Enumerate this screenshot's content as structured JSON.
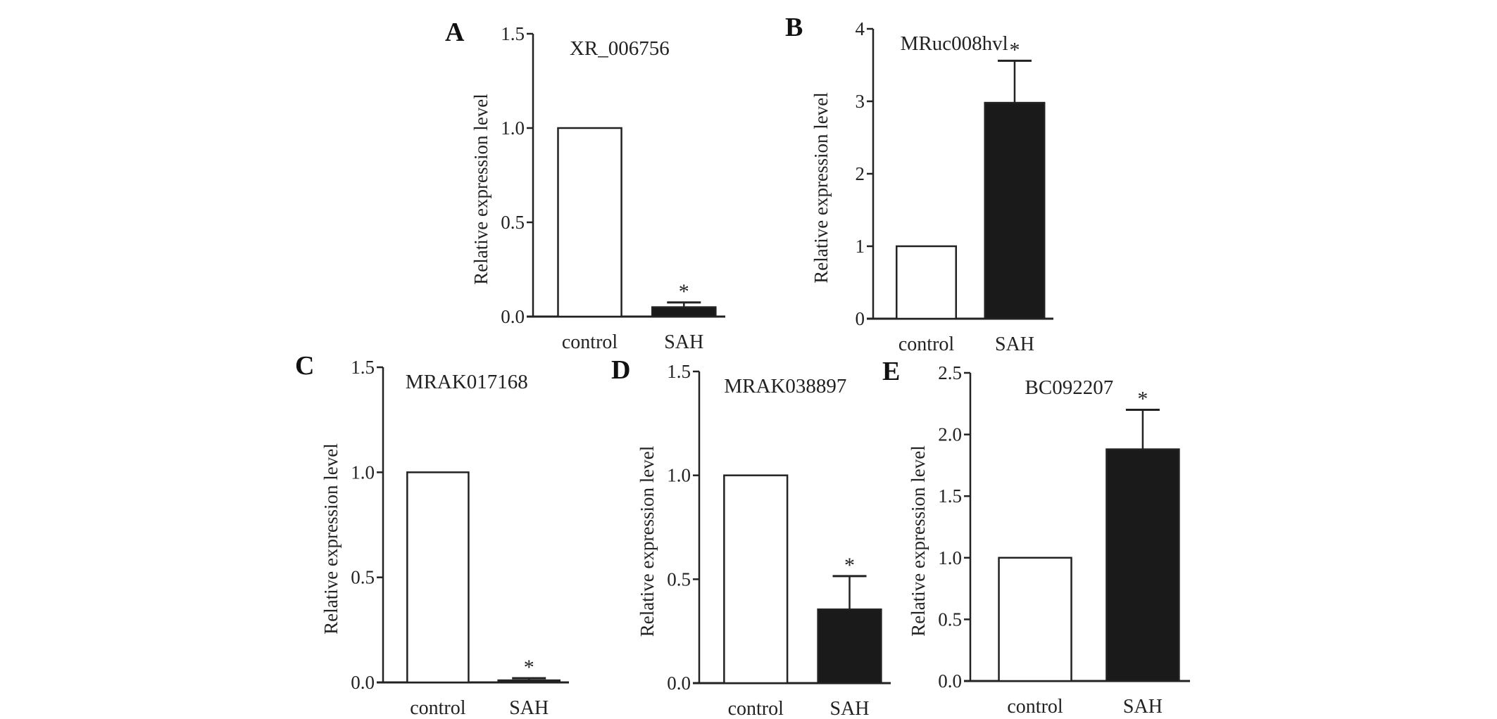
{
  "chart_data": [
    {
      "type": "bar",
      "panel": "A",
      "title": "XR_006756",
      "ylabel": "Relative expression level",
      "categories": [
        "control",
        "SAH"
      ],
      "values": [
        1.0,
        0.05
      ],
      "error_upper": [
        null,
        0.075
      ],
      "significance": [
        "",
        "*"
      ],
      "ylim": [
        0,
        1.5
      ],
      "yticks": [
        "0.0",
        "0.5",
        "1.0",
        "1.5"
      ],
      "colors": [
        "#ffffff",
        "#1a1a1a"
      ]
    },
    {
      "type": "bar",
      "panel": "B",
      "title": "MRuc008hvl",
      "ylabel": "Relative expression level",
      "categories": [
        "control",
        "SAH"
      ],
      "values": [
        1.0,
        2.98
      ],
      "error_upper": [
        null,
        3.56
      ],
      "significance": [
        "",
        "*"
      ],
      "ylim": [
        0,
        4
      ],
      "yticks": [
        "0",
        "1",
        "2",
        "3",
        "4"
      ],
      "colors": [
        "#ffffff",
        "#1a1a1a"
      ]
    },
    {
      "type": "bar",
      "panel": "C",
      "title": "MRAK017168",
      "ylabel": "Relative expression level",
      "categories": [
        "control",
        "SAH"
      ],
      "values": [
        1.0,
        0.01
      ],
      "error_upper": [
        null,
        0.02
      ],
      "significance": [
        "",
        "*"
      ],
      "ylim": [
        0,
        1.5
      ],
      "yticks": [
        "0.0",
        "0.5",
        "1.0",
        "1.5"
      ],
      "colors": [
        "#ffffff",
        "#1a1a1a"
      ]
    },
    {
      "type": "bar",
      "panel": "D",
      "title": "MRAK038897",
      "ylabel": "Relative expression level",
      "categories": [
        "control",
        "SAH"
      ],
      "values": [
        1.0,
        0.355
      ],
      "error_upper": [
        null,
        0.515
      ],
      "significance": [
        "",
        "*"
      ],
      "ylim": [
        0,
        1.5
      ],
      "yticks": [
        "0.0",
        "0.5",
        "1.0",
        "1.5"
      ],
      "colors": [
        "#ffffff",
        "#1a1a1a"
      ]
    },
    {
      "type": "bar",
      "panel": "E",
      "title": "BC092207",
      "ylabel": "Relative expression level",
      "categories": [
        "control",
        "SAH"
      ],
      "values": [
        1.0,
        1.88
      ],
      "error_upper": [
        null,
        2.2
      ],
      "significance": [
        "",
        "*"
      ],
      "ylim": [
        0,
        2.5
      ],
      "yticks": [
        "0.0",
        "0.5",
        "1.0",
        "1.5",
        "2.0",
        "2.5"
      ],
      "colors": [
        "#ffffff",
        "#1a1a1a"
      ]
    }
  ]
}
